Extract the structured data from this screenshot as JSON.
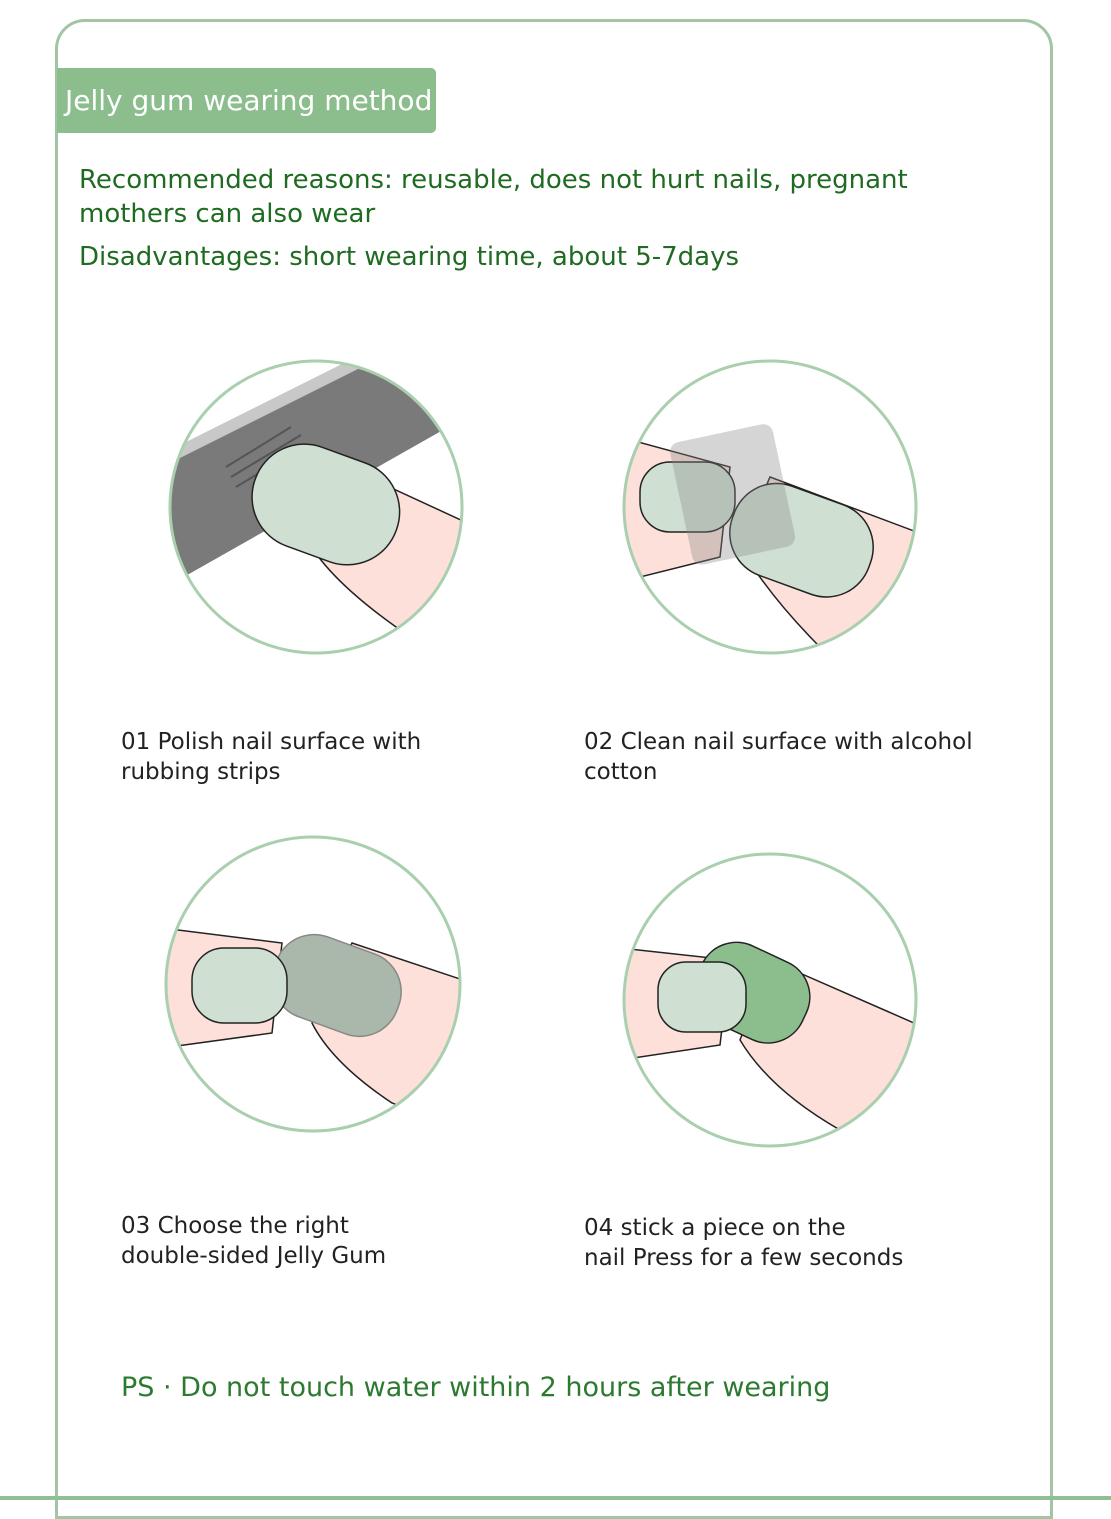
{
  "banner": {
    "title": "Jelly gum wearing method"
  },
  "intro": {
    "recommended_line1": "Recommended reasons: reusable, does not hurt nails, pregnant",
    "recommended_line2": "mothers can also wear",
    "disadvantages": "Disadvantages: short wearing time, about 5-7days"
  },
  "steps": [
    {
      "line1": "01 Polish nail surface with",
      "line2": "rubbing strips",
      "icon": "nail-file-illustration"
    },
    {
      "line1": "02 Clean nail surface with alcohol",
      "line2": "cotton",
      "icon": "alcohol-cotton-illustration"
    },
    {
      "line1": "03 Choose the right",
      "line2": "double-sided Jelly Gum",
      "icon": "jelly-gum-illustration"
    },
    {
      "line1": "04 stick a piece on the",
      "line2": "nail  Press for a few seconds",
      "icon": "press-nail-illustration"
    }
  ],
  "ps": "PS · Do not touch water within 2 hours after wearing",
  "colors": {
    "accent": "#8bbd8d",
    "text_green": "#1f6b22",
    "nail": "#cfe0d3",
    "skin": "#fde0d9",
    "circle": "#a9cfae"
  }
}
